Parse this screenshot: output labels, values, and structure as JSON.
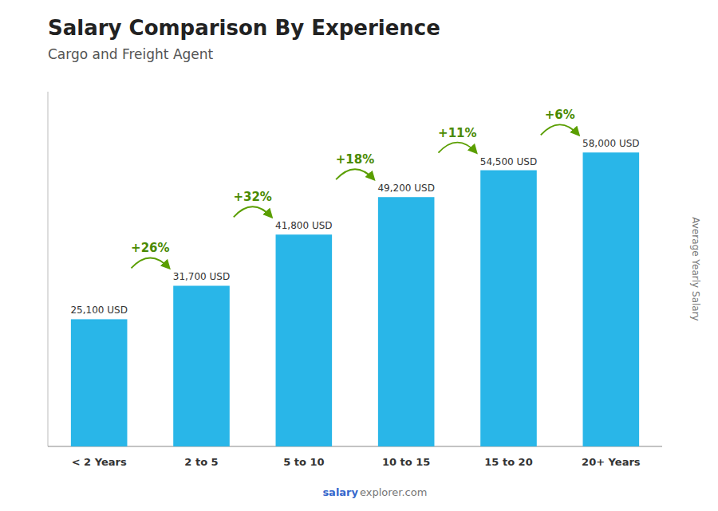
{
  "chart_data": {
    "type": "bar",
    "title": "Salary Comparison By Experience",
    "subtitle": "Cargo and Freight Agent",
    "categories": [
      "< 2 Years",
      "2 to 5",
      "5 to 10",
      "10 to 15",
      "15 to 20",
      "20+ Years"
    ],
    "values": [
      25100,
      31700,
      41800,
      49200,
      54500,
      58000
    ],
    "value_labels": [
      "25,100 USD",
      "31,700 USD",
      "41,800 USD",
      "49,200 USD",
      "54,500 USD",
      "58,000 USD"
    ],
    "data_labels": true,
    "annotations": [
      "+26%",
      "+32%",
      "+18%",
      "+11%",
      "+6%"
    ],
    "y_label": "Average Yearly Salary",
    "footer": [
      "salary",
      "explorer.com"
    ],
    "color": "#29b6e8",
    "ylim": [
      0,
      70000
    ],
    "tick_labels": "x",
    "grid": false
  }
}
